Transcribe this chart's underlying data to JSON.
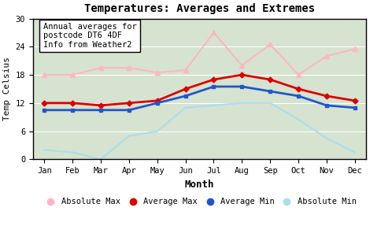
{
  "months": [
    "Jan",
    "Feb",
    "Mar",
    "Apr",
    "May",
    "Jun",
    "Jul",
    "Aug",
    "Sep",
    "Oct",
    "Nov",
    "Dec"
  ],
  "abs_max": [
    18.0,
    18.0,
    19.5,
    19.5,
    18.5,
    19.0,
    27.0,
    20.0,
    24.5,
    18.0,
    22.0,
    23.5
  ],
  "avg_max": [
    12.0,
    12.0,
    11.5,
    12.0,
    12.5,
    15.0,
    17.0,
    18.0,
    17.0,
    15.0,
    13.5,
    12.5
  ],
  "avg_min": [
    10.5,
    10.5,
    10.5,
    10.5,
    12.0,
    13.5,
    15.5,
    15.5,
    14.5,
    13.5,
    11.5,
    11.0
  ],
  "abs_min": [
    2.0,
    1.5,
    0.0,
    5.0,
    6.0,
    11.0,
    11.5,
    12.0,
    12.0,
    8.5,
    4.5,
    1.5
  ],
  "title": "Temperatures: Averages and Extremes",
  "xlabel": "Month",
  "ylabel": "Temp Celsius",
  "ylim": [
    0,
    30
  ],
  "yticks": [
    0,
    6,
    12,
    18,
    24,
    30
  ],
  "annotation": "Annual averages for\npostcode DT6 4DF\nInfo from Weather2",
  "color_abs_max": "#FFB6C1",
  "color_avg_max": "#DD0000",
  "color_avg_min": "#2255CC",
  "color_abs_min": "#AADDEE",
  "bg_color": "#D5E3D0",
  "legend_labels": [
    "Absolute Max",
    "Average Max",
    "Average Min",
    "Absolute Min"
  ]
}
